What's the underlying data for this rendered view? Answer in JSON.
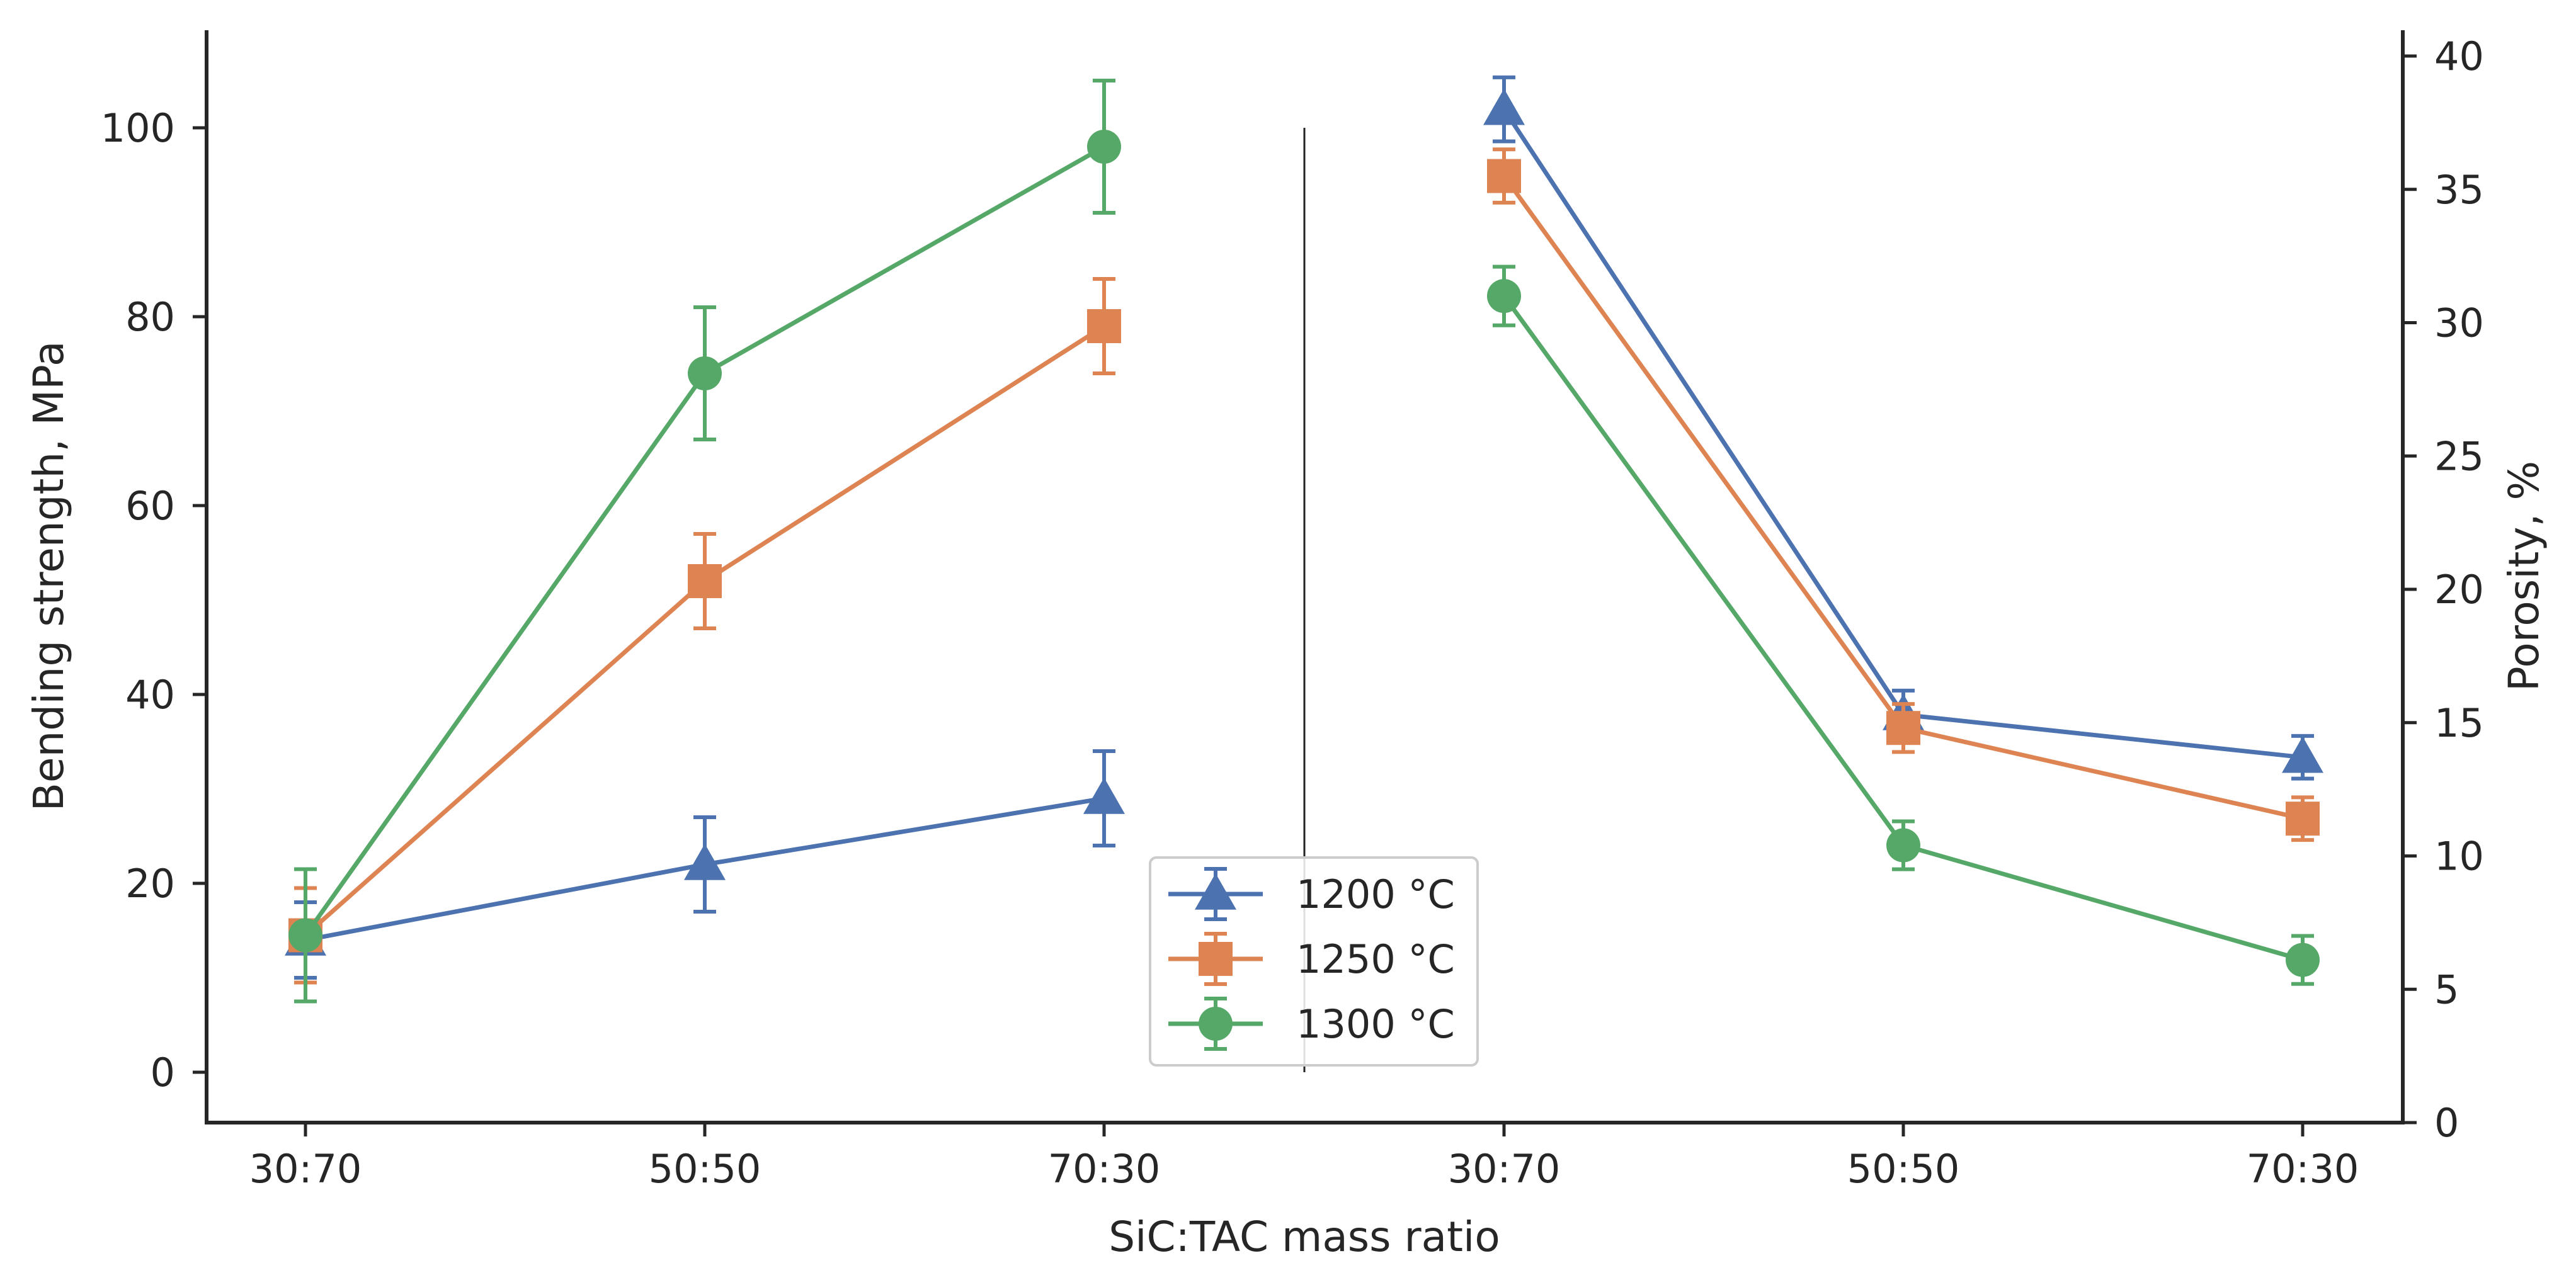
{
  "chart_data": {
    "type": "line",
    "xlabel": "SiC:TAC mass ratio",
    "ylabel_left": "Bending strength, MPa",
    "ylabel_right": "Porosity, %",
    "ylim_left": [
      -5.5,
      110
    ],
    "yticks_left": [
      "0",
      "20",
      "40",
      "60",
      "80",
      "100"
    ],
    "ylim_right": [
      0,
      41
    ],
    "yticks_right": [
      "0",
      "5",
      "10",
      "15",
      "20",
      "25",
      "30",
      "35",
      "40"
    ],
    "categories_left": [
      "30:70",
      "50:50",
      "70:30"
    ],
    "categories_right": [
      "30:70",
      "50:50",
      "70:30"
    ],
    "grid": false,
    "legend_position": "bottom-center",
    "series": [
      {
        "name": "1200 °C",
        "color": "#4c72b0",
        "marker": "triangle",
        "bending_strength": [
          14,
          22,
          29
        ],
        "bending_error": [
          4,
          5,
          5
        ],
        "porosity": [
          38,
          15.3,
          13.7
        ],
        "porosity_error": [
          1.2,
          0.9,
          0.8
        ]
      },
      {
        "name": "1250 °C",
        "color": "#dd8452",
        "marker": "square",
        "bending_strength": [
          14.5,
          52,
          79
        ],
        "bending_error": [
          5,
          5,
          5
        ],
        "porosity": [
          35.5,
          14.8,
          11.4
        ],
        "porosity_error": [
          1,
          0.9,
          0.8
        ]
      },
      {
        "name": "1300 °C",
        "color": "#55a868",
        "marker": "circle",
        "bending_strength": [
          14.5,
          74,
          98
        ],
        "bending_error": [
          7,
          7,
          7
        ],
        "porosity": [
          31,
          10.4,
          6.1
        ],
        "porosity_error": [
          1.1,
          0.9,
          0.9
        ]
      }
    ]
  }
}
